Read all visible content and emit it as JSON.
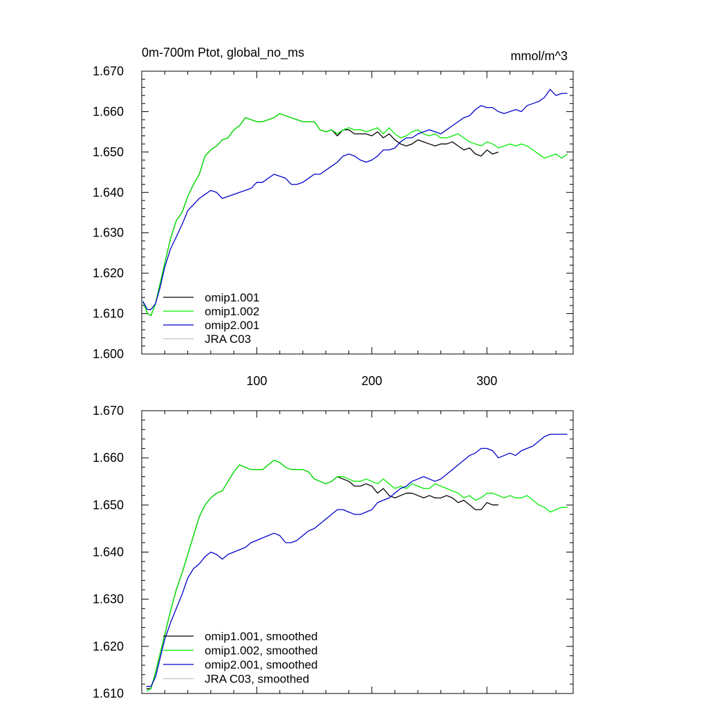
{
  "chart_data": [
    {
      "type": "line",
      "title": "0m-700m Ptot, global_no_ms",
      "units": "mmol/m^3",
      "xlabel": "",
      "ylabel": "",
      "xlim": [
        0,
        375
      ],
      "ylim": [
        1.6,
        1.67
      ],
      "x_ticks": [
        {
          "value": 100,
          "label": "100"
        },
        {
          "value": 200,
          "label": "200"
        },
        {
          "value": 300,
          "label": "300"
        }
      ],
      "y_ticks": [
        {
          "value": 1.6,
          "label": "1.600"
        },
        {
          "value": 1.61,
          "label": "1.610"
        },
        {
          "value": 1.62,
          "label": "1.620"
        },
        {
          "value": 1.63,
          "label": "1.630"
        },
        {
          "value": 1.64,
          "label": "1.640"
        },
        {
          "value": 1.65,
          "label": "1.650"
        },
        {
          "value": 1.66,
          "label": "1.660"
        },
        {
          "value": 1.67,
          "label": "1.670"
        }
      ],
      "grid": false,
      "legend_position": "bottom-left",
      "series": [
        {
          "name": "omip1.001",
          "color": "#000000",
          "x": [
            1,
            5,
            8,
            12,
            16,
            20,
            25,
            30,
            35,
            40,
            45,
            50,
            55,
            60,
            65,
            70,
            75,
            80,
            85,
            90,
            95,
            100,
            105,
            110,
            115,
            120,
            125,
            130,
            135,
            140,
            145,
            150,
            155,
            160,
            165,
            170,
            175,
            180,
            185,
            190,
            195,
            200,
            205,
            210,
            215,
            220,
            225,
            230,
            235,
            240,
            245,
            250,
            255,
            260,
            265,
            270,
            275,
            280,
            285,
            290,
            295,
            300,
            305,
            310
          ],
          "y": [
            1.613,
            1.61,
            1.6095,
            1.6125,
            1.6175,
            1.6225,
            1.6285,
            1.633,
            1.635,
            1.639,
            1.642,
            1.6445,
            1.649,
            1.6505,
            1.6515,
            1.653,
            1.6535,
            1.6555,
            1.6565,
            1.6585,
            1.658,
            1.6575,
            1.6575,
            1.658,
            1.6585,
            1.6595,
            1.659,
            1.6585,
            1.658,
            1.6575,
            1.6575,
            1.6575,
            1.6555,
            1.655,
            1.6555,
            1.654,
            1.6555,
            1.6555,
            1.6545,
            1.6545,
            1.6545,
            1.654,
            1.655,
            1.6535,
            1.6545,
            1.653,
            1.652,
            1.6515,
            1.652,
            1.653,
            1.6525,
            1.652,
            1.6515,
            1.652,
            1.652,
            1.6525,
            1.6515,
            1.6505,
            1.651,
            1.6495,
            1.649,
            1.6505,
            1.6495,
            1.65
          ]
        },
        {
          "name": "omip1.002",
          "color": "#00ee00",
          "x": [
            1,
            5,
            8,
            12,
            16,
            20,
            25,
            30,
            35,
            40,
            45,
            50,
            55,
            60,
            65,
            70,
            75,
            80,
            85,
            90,
            95,
            100,
            105,
            110,
            115,
            120,
            125,
            130,
            135,
            140,
            145,
            150,
            155,
            160,
            165,
            170,
            175,
            180,
            185,
            190,
            195,
            200,
            205,
            210,
            215,
            220,
            225,
            230,
            235,
            240,
            245,
            250,
            255,
            260,
            265,
            270,
            275,
            280,
            285,
            290,
            295,
            300,
            305,
            310,
            315,
            320,
            325,
            330,
            335,
            340,
            345,
            350,
            355,
            360,
            365,
            370
          ],
          "y": [
            1.613,
            1.61,
            1.6095,
            1.6125,
            1.6175,
            1.6225,
            1.6285,
            1.633,
            1.635,
            1.639,
            1.642,
            1.6445,
            1.649,
            1.6505,
            1.6515,
            1.653,
            1.6535,
            1.6555,
            1.6565,
            1.6585,
            1.658,
            1.6575,
            1.6575,
            1.658,
            1.6585,
            1.6595,
            1.659,
            1.6585,
            1.658,
            1.6575,
            1.6575,
            1.6575,
            1.6555,
            1.655,
            1.6555,
            1.6545,
            1.6555,
            1.656,
            1.6555,
            1.6555,
            1.655,
            1.6555,
            1.656,
            1.6545,
            1.656,
            1.6545,
            1.6535,
            1.654,
            1.655,
            1.6555,
            1.6545,
            1.654,
            1.6545,
            1.6535,
            1.6535,
            1.654,
            1.6545,
            1.6535,
            1.6525,
            1.652,
            1.6515,
            1.6525,
            1.652,
            1.651,
            1.6515,
            1.652,
            1.6515,
            1.652,
            1.6515,
            1.6505,
            1.6495,
            1.6485,
            1.649,
            1.6495,
            1.6485,
            1.6495
          ]
        },
        {
          "name": "omip2.001",
          "color": "#0000cc",
          "x": [
            1,
            5,
            8,
            12,
            16,
            20,
            25,
            30,
            35,
            40,
            45,
            50,
            55,
            60,
            65,
            70,
            75,
            80,
            85,
            90,
            95,
            100,
            105,
            110,
            115,
            120,
            125,
            130,
            135,
            140,
            145,
            150,
            155,
            160,
            165,
            170,
            175,
            180,
            185,
            190,
            195,
            200,
            205,
            210,
            215,
            220,
            225,
            230,
            235,
            240,
            245,
            250,
            255,
            260,
            265,
            270,
            275,
            280,
            285,
            290,
            295,
            300,
            305,
            310,
            315,
            320,
            325,
            330,
            335,
            340,
            345,
            350,
            355,
            360,
            365,
            370
          ],
          "y": [
            1.613,
            1.611,
            1.611,
            1.6125,
            1.6165,
            1.6215,
            1.626,
            1.629,
            1.632,
            1.6355,
            1.637,
            1.6385,
            1.6395,
            1.6405,
            1.64,
            1.6385,
            1.639,
            1.6395,
            1.64,
            1.6405,
            1.641,
            1.6425,
            1.6425,
            1.6435,
            1.6445,
            1.644,
            1.6435,
            1.642,
            1.642,
            1.6425,
            1.6435,
            1.6445,
            1.6445,
            1.6455,
            1.6465,
            1.6475,
            1.649,
            1.6495,
            1.649,
            1.648,
            1.6475,
            1.648,
            1.649,
            1.6505,
            1.6505,
            1.651,
            1.6525,
            1.6535,
            1.6535,
            1.6545,
            1.655,
            1.6555,
            1.655,
            1.6545,
            1.6555,
            1.6565,
            1.6575,
            1.6585,
            1.659,
            1.6605,
            1.6615,
            1.661,
            1.661,
            1.66,
            1.6595,
            1.66,
            1.6605,
            1.66,
            1.6615,
            1.662,
            1.6625,
            1.6635,
            1.6655,
            1.664,
            1.6645,
            1.6645
          ]
        },
        {
          "name": "JRA C03",
          "color": "#c0c0c0",
          "x": [],
          "y": []
        }
      ]
    },
    {
      "type": "line",
      "title": "",
      "units": "",
      "xlabel": "",
      "ylabel": "",
      "xlim": [
        0,
        375
      ],
      "ylim": [
        1.61,
        1.67
      ],
      "x_ticks": [
        {
          "value": 100,
          "label": ""
        },
        {
          "value": 200,
          "label": ""
        },
        {
          "value": 300,
          "label": ""
        }
      ],
      "y_ticks": [
        {
          "value": 1.61,
          "label": "1.610"
        },
        {
          "value": 1.62,
          "label": "1.620"
        },
        {
          "value": 1.63,
          "label": "1.630"
        },
        {
          "value": 1.64,
          "label": "1.640"
        },
        {
          "value": 1.65,
          "label": "1.650"
        },
        {
          "value": 1.66,
          "label": "1.660"
        },
        {
          "value": 1.67,
          "label": "1.670"
        }
      ],
      "grid": false,
      "legend_position": "bottom-left",
      "series": [
        {
          "name": "omip1.001, smoothed",
          "color": "#000000",
          "x": [
            4,
            8,
            12,
            16,
            20,
            25,
            30,
            35,
            40,
            45,
            50,
            55,
            60,
            65,
            70,
            75,
            80,
            85,
            90,
            95,
            100,
            105,
            110,
            115,
            120,
            125,
            130,
            135,
            140,
            145,
            150,
            155,
            160,
            165,
            170,
            175,
            180,
            185,
            190,
            195,
            200,
            205,
            210,
            215,
            220,
            225,
            230,
            235,
            240,
            245,
            250,
            255,
            260,
            265,
            270,
            275,
            280,
            285,
            290,
            295,
            300,
            305,
            310
          ],
          "y": [
            1.611,
            1.611,
            1.6145,
            1.6185,
            1.6225,
            1.6275,
            1.632,
            1.6355,
            1.6395,
            1.6435,
            1.6475,
            1.65,
            1.6515,
            1.6525,
            1.653,
            1.655,
            1.657,
            1.6585,
            1.658,
            1.6575,
            1.6575,
            1.6575,
            1.6585,
            1.6595,
            1.659,
            1.658,
            1.6575,
            1.6575,
            1.6575,
            1.657,
            1.6555,
            1.655,
            1.6545,
            1.655,
            1.656,
            1.6555,
            1.655,
            1.654,
            1.654,
            1.6545,
            1.654,
            1.6525,
            1.6535,
            1.652,
            1.6515,
            1.652,
            1.6525,
            1.6525,
            1.652,
            1.6515,
            1.652,
            1.6515,
            1.6515,
            1.652,
            1.6515,
            1.6505,
            1.651,
            1.65,
            1.649,
            1.649,
            1.6505,
            1.65,
            1.65
          ]
        },
        {
          "name": "omip1.002, smoothed",
          "color": "#00ee00",
          "x": [
            4,
            8,
            12,
            16,
            20,
            25,
            30,
            35,
            40,
            45,
            50,
            55,
            60,
            65,
            70,
            75,
            80,
            85,
            90,
            95,
            100,
            105,
            110,
            115,
            120,
            125,
            130,
            135,
            140,
            145,
            150,
            155,
            160,
            165,
            170,
            175,
            180,
            185,
            190,
            195,
            200,
            205,
            210,
            215,
            220,
            225,
            230,
            235,
            240,
            245,
            250,
            255,
            260,
            265,
            270,
            275,
            280,
            285,
            290,
            295,
            300,
            305,
            310,
            315,
            320,
            325,
            330,
            335,
            340,
            345,
            350,
            355,
            360,
            365,
            370
          ],
          "y": [
            1.6105,
            1.611,
            1.6145,
            1.6185,
            1.6225,
            1.6275,
            1.632,
            1.6355,
            1.6395,
            1.6435,
            1.6475,
            1.65,
            1.6515,
            1.6525,
            1.653,
            1.655,
            1.657,
            1.6585,
            1.658,
            1.6575,
            1.6575,
            1.6575,
            1.6585,
            1.6595,
            1.659,
            1.658,
            1.6575,
            1.6575,
            1.6575,
            1.657,
            1.6555,
            1.655,
            1.6545,
            1.655,
            1.656,
            1.656,
            1.6555,
            1.655,
            1.655,
            1.6555,
            1.655,
            1.6545,
            1.6555,
            1.6545,
            1.6535,
            1.654,
            1.6535,
            1.6545,
            1.654,
            1.6535,
            1.6535,
            1.6545,
            1.654,
            1.6535,
            1.653,
            1.6525,
            1.6515,
            1.652,
            1.651,
            1.6515,
            1.6525,
            1.6525,
            1.652,
            1.6515,
            1.652,
            1.6515,
            1.6515,
            1.652,
            1.651,
            1.65,
            1.6495,
            1.6485,
            1.649,
            1.6495,
            1.6495
          ]
        },
        {
          "name": "omip2.001, smoothed",
          "color": "#0000cc",
          "x": [
            4,
            8,
            12,
            16,
            20,
            25,
            30,
            35,
            40,
            45,
            50,
            55,
            60,
            65,
            70,
            75,
            80,
            85,
            90,
            95,
            100,
            105,
            110,
            115,
            120,
            125,
            130,
            135,
            140,
            145,
            150,
            155,
            160,
            165,
            170,
            175,
            180,
            185,
            190,
            195,
            200,
            205,
            210,
            215,
            220,
            225,
            230,
            235,
            240,
            245,
            250,
            255,
            260,
            265,
            270,
            275,
            280,
            285,
            290,
            295,
            300,
            305,
            310,
            315,
            320,
            325,
            330,
            335,
            340,
            345,
            350,
            355,
            360,
            365,
            370
          ],
          "y": [
            1.6115,
            1.6115,
            1.6135,
            1.6175,
            1.6215,
            1.625,
            1.628,
            1.631,
            1.6345,
            1.6365,
            1.6375,
            1.639,
            1.64,
            1.6395,
            1.6385,
            1.6395,
            1.64,
            1.6405,
            1.641,
            1.642,
            1.6425,
            1.643,
            1.6435,
            1.644,
            1.6435,
            1.642,
            1.642,
            1.6425,
            1.6435,
            1.6445,
            1.645,
            1.646,
            1.647,
            1.648,
            1.649,
            1.649,
            1.6485,
            1.648,
            1.648,
            1.6485,
            1.649,
            1.6505,
            1.651,
            1.6515,
            1.6525,
            1.6535,
            1.654,
            1.655,
            1.6555,
            1.656,
            1.6555,
            1.655,
            1.6555,
            1.6565,
            1.6575,
            1.6585,
            1.6595,
            1.6605,
            1.661,
            1.662,
            1.662,
            1.6615,
            1.66,
            1.6605,
            1.661,
            1.6605,
            1.6615,
            1.662,
            1.6625,
            1.6635,
            1.6645,
            1.665,
            1.665,
            1.665,
            1.665
          ]
        },
        {
          "name": "JRA C03, smoothed",
          "color": "#c0c0c0",
          "x": [],
          "y": []
        }
      ]
    }
  ]
}
